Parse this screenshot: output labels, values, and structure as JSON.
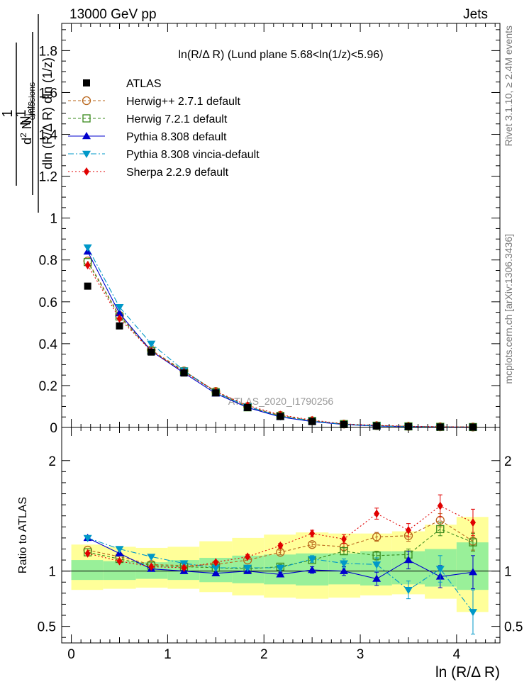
{
  "header": {
    "energy": "13000 GeV pp",
    "process": "Jets",
    "title": "ln(R/Δ R) (Lund plane 5.68<ln(1/z)<5.96)",
    "watermark": "ATLAS_2020_I1790256",
    "side_top": "Rivet 3.1.10, ≥ 2.4M events",
    "side_bottom": "mcplots.cern.ch [arXiv:1306.3436]"
  },
  "chart_data": {
    "type": "scatter",
    "xlabel": "ln (R/Δ R)",
    "ylabel": "1/N_jets d² N_emissions / dln (R/Δ R) dln (1/z)",
    "ratio_ylabel": "Ratio to ATLAS",
    "xlim": [
      -0.1,
      4.45
    ],
    "ylim": [
      0,
      1.93
    ],
    "ratio_ylim": [
      0.35,
      2.3
    ],
    "x_ticks": [
      0,
      1,
      2,
      3,
      4
    ],
    "y_ticks": [
      0,
      0.2,
      0.4,
      0.6,
      0.8,
      1,
      1.2,
      1.4,
      1.6,
      1.8
    ],
    "y_tick_labels": [
      "0",
      "0.2",
      "0.4",
      "0.6",
      "0.8",
      "1",
      "1.2",
      "1.4",
      "1.6",
      "1.8"
    ],
    "ratio_ticks": [
      0.5,
      1,
      2
    ],
    "ratio_tick_labels": [
      "0.5",
      "1",
      "2"
    ],
    "x": [
      0.17,
      0.5,
      0.83,
      1.17,
      1.5,
      1.83,
      2.17,
      2.5,
      2.83,
      3.17,
      3.5,
      3.83,
      4.17
    ],
    "bin_edges": [
      0.0,
      0.33,
      0.67,
      1.0,
      1.33,
      1.67,
      2.0,
      2.33,
      2.67,
      3.0,
      3.33,
      3.67,
      4.0,
      4.33
    ],
    "atlas": {
      "name": "ATLAS",
      "values": [
        0.675,
        0.485,
        0.36,
        0.26,
        0.165,
        0.095,
        0.052,
        0.028,
        0.014,
        0.007,
        0.004,
        0.002,
        0.0015
      ]
    },
    "band_inner": [
      [
        0.92,
        1.1
      ],
      [
        0.92,
        1.09
      ],
      [
        0.93,
        1.08
      ],
      [
        0.92,
        1.1
      ],
      [
        0.9,
        1.12
      ],
      [
        0.89,
        1.14
      ],
      [
        0.88,
        1.15
      ],
      [
        0.87,
        1.16
      ],
      [
        0.88,
        1.16
      ],
      [
        0.87,
        1.18
      ],
      [
        0.88,
        1.18
      ],
      [
        0.86,
        1.2
      ],
      [
        0.83,
        1.26
      ]
    ],
    "band_outer": [
      [
        0.83,
        1.24
      ],
      [
        0.84,
        1.22
      ],
      [
        0.85,
        1.21
      ],
      [
        0.84,
        1.22
      ],
      [
        0.81,
        1.27
      ],
      [
        0.78,
        1.3
      ],
      [
        0.76,
        1.33
      ],
      [
        0.75,
        1.35
      ],
      [
        0.76,
        1.34
      ],
      [
        0.78,
        1.34
      ],
      [
        0.79,
        1.36
      ],
      [
        0.75,
        1.42
      ],
      [
        0.63,
        1.49
      ]
    ],
    "series": [
      {
        "name": "Herwig++ 2.7.1 default",
        "color": "#b8651a",
        "marker": "circle-open",
        "dash": "4,3",
        "values": [
          0.795,
          0.535,
          0.37,
          0.27,
          0.172,
          0.1,
          0.058,
          0.032,
          0.016,
          0.0085,
          0.0053,
          0.0031,
          0.0019
        ],
        "ratio": [
          1.19,
          1.13,
          1.06,
          1.05,
          1.06,
          1.1,
          1.17,
          1.24,
          1.22,
          1.31,
          1.32,
          1.46,
          1.27
        ],
        "ratio_err": [
          0.01,
          0.01,
          0.01,
          0.01,
          0.01,
          0.015,
          0.02,
          0.02,
          0.03,
          0.04,
          0.05,
          0.06,
          0.08
        ]
      },
      {
        "name": "Herwig 7.2.1 default",
        "color": "#3a8a1c",
        "marker": "square-open",
        "dash": "4,3",
        "values": [
          0.79,
          0.53,
          0.365,
          0.268,
          0.168,
          0.096,
          0.055,
          0.031,
          0.016,
          0.0082,
          0.0049,
          0.0029,
          0.0019
        ],
        "ratio": [
          1.17,
          1.11,
          1.05,
          1.04,
          1.03,
          1.02,
          1.04,
          1.1,
          1.18,
          1.14,
          1.15,
          1.38,
          1.26
        ],
        "ratio_err": [
          0.01,
          0.01,
          0.01,
          0.01,
          0.01,
          0.015,
          0.02,
          0.02,
          0.03,
          0.04,
          0.05,
          0.06,
          0.08
        ]
      },
      {
        "name": "Pythia 8.308 default",
        "color": "#0000cc",
        "marker": "triangle-up",
        "dash": "",
        "values": [
          0.84,
          0.545,
          0.365,
          0.26,
          0.162,
          0.095,
          0.05,
          0.028,
          0.014,
          0.0065,
          0.0044,
          0.0019,
          0.0015
        ],
        "ratio": [
          1.3,
          1.16,
          1.02,
          1.0,
          0.98,
          1.0,
          0.97,
          1.01,
          1.0,
          0.93,
          1.1,
          0.95,
          0.99
        ],
        "ratio_err": [
          0.01,
          0.01,
          0.01,
          0.01,
          0.01,
          0.015,
          0.02,
          0.03,
          0.04,
          0.06,
          0.08,
          0.1,
          0.15
        ]
      },
      {
        "name": "Pythia 8.308 vincia-default",
        "color": "#0098c8",
        "marker": "triangle-down",
        "dash": "8,3,2,3",
        "values": [
          0.86,
          0.575,
          0.4,
          0.272,
          0.168,
          0.1,
          0.053,
          0.031,
          0.015,
          0.0074,
          0.0033,
          0.0021,
          0.0009
        ],
        "ratio": [
          1.3,
          1.2,
          1.13,
          1.07,
          1.03,
          1.03,
          1.03,
          1.11,
          1.07,
          1.06,
          0.83,
          1.02,
          0.63
        ],
        "ratio_err": [
          0.01,
          0.01,
          0.01,
          0.01,
          0.01,
          0.015,
          0.02,
          0.03,
          0.04,
          0.06,
          0.08,
          0.12,
          0.2
        ]
      },
      {
        "name": "Sherpa 2.2.9 default",
        "color": "#e00000",
        "marker": "diamond",
        "dash": "2,3",
        "values": [
          0.775,
          0.52,
          0.365,
          0.265,
          0.172,
          0.105,
          0.06,
          0.035,
          0.017,
          0.01,
          0.0056,
          0.0032,
          0.0022
        ],
        "ratio": [
          1.16,
          1.09,
          1.04,
          1.03,
          1.08,
          1.13,
          1.23,
          1.34,
          1.29,
          1.52,
          1.37,
          1.59,
          1.44
        ],
        "ratio_err": [
          0.01,
          0.01,
          0.01,
          0.01,
          0.015,
          0.02,
          0.02,
          0.03,
          0.04,
          0.05,
          0.06,
          0.1,
          0.12
        ]
      }
    ]
  }
}
